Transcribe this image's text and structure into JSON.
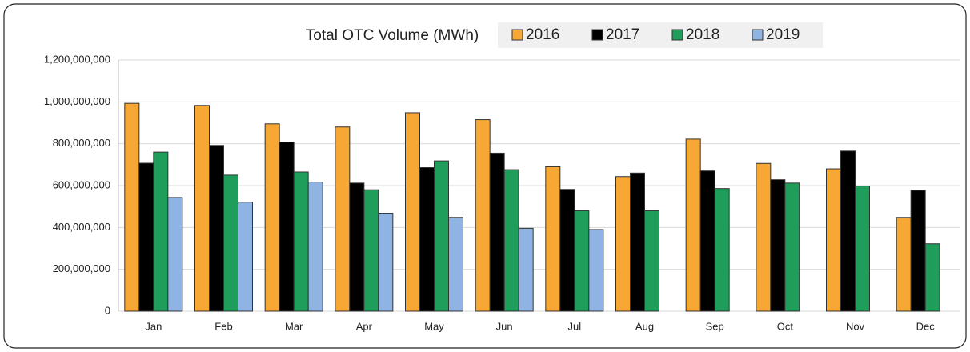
{
  "chart_data": {
    "type": "bar",
    "title": "Total OTC Volume (MWh)",
    "categories": [
      "Jan",
      "Feb",
      "Mar",
      "Apr",
      "May",
      "Jun",
      "Jul",
      "Aug",
      "Sep",
      "Oct",
      "Nov",
      "Dec"
    ],
    "series": [
      {
        "name": "2016",
        "color": "#f7a733",
        "values": [
          993000000,
          983000000,
          895000000,
          880000000,
          948000000,
          915000000,
          690000000,
          643000000,
          822000000,
          706000000,
          680000000,
          448000000
        ]
      },
      {
        "name": "2017",
        "color": "#000000",
        "values": [
          707000000,
          792000000,
          808000000,
          612000000,
          686000000,
          755000000,
          582000000,
          660000000,
          670000000,
          628000000,
          765000000,
          577000000
        ]
      },
      {
        "name": "2018",
        "color": "#1e9e5a",
        "values": [
          760000000,
          650000000,
          665000000,
          580000000,
          718000000,
          676000000,
          480000000,
          480000000,
          586000000,
          612000000,
          598000000,
          322000000
        ]
      },
      {
        "name": "2019",
        "color": "#8fb4e3",
        "values": [
          543000000,
          521000000,
          617000000,
          468000000,
          448000000,
          396000000,
          390000000,
          null,
          null,
          null,
          null,
          null
        ]
      }
    ],
    "ylim": [
      0,
      1200000000
    ],
    "yticks": [
      0,
      {
        "value": 200000000,
        "label": "200,000,000"
      },
      {
        "value": 400000000,
        "label": "400,000,000"
      },
      {
        "value": 600000000,
        "label": "600,000,000"
      },
      {
        "value": 800000000,
        "label": "800,000,000"
      },
      {
        "value": 1000000000,
        "label": "1,000,000,000"
      },
      {
        "value": 1200000000,
        "label": "1,200,000,000"
      }
    ],
    "grid": true,
    "legend": "top"
  }
}
